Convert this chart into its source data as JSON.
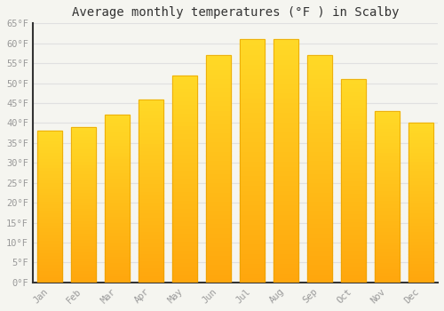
{
  "title": "Average monthly temperatures (°F ) in Scalby",
  "months": [
    "Jan",
    "Feb",
    "Mar",
    "Apr",
    "May",
    "Jun",
    "Jul",
    "Aug",
    "Sep",
    "Oct",
    "Nov",
    "Dec"
  ],
  "values": [
    38,
    39,
    42,
    46,
    52,
    57,
    61,
    61,
    57,
    51,
    43,
    40
  ],
  "bar_color_top": "#FFB300",
  "bar_color_bottom": "#FF9500",
  "background_color": "#F5F5F0",
  "grid_color": "#E0E0E0",
  "tick_color": "#999999",
  "title_color": "#333333",
  "ylim": [
    0,
    65
  ],
  "yticks": [
    0,
    5,
    10,
    15,
    20,
    25,
    30,
    35,
    40,
    45,
    50,
    55,
    60,
    65
  ],
  "ytick_labels": [
    "0°F",
    "5°F",
    "10°F",
    "15°F",
    "20°F",
    "25°F",
    "30°F",
    "35°F",
    "40°F",
    "45°F",
    "50°F",
    "55°F",
    "60°F",
    "65°F"
  ],
  "title_fontsize": 10,
  "tick_fontsize": 7.5,
  "font_family": "monospace"
}
